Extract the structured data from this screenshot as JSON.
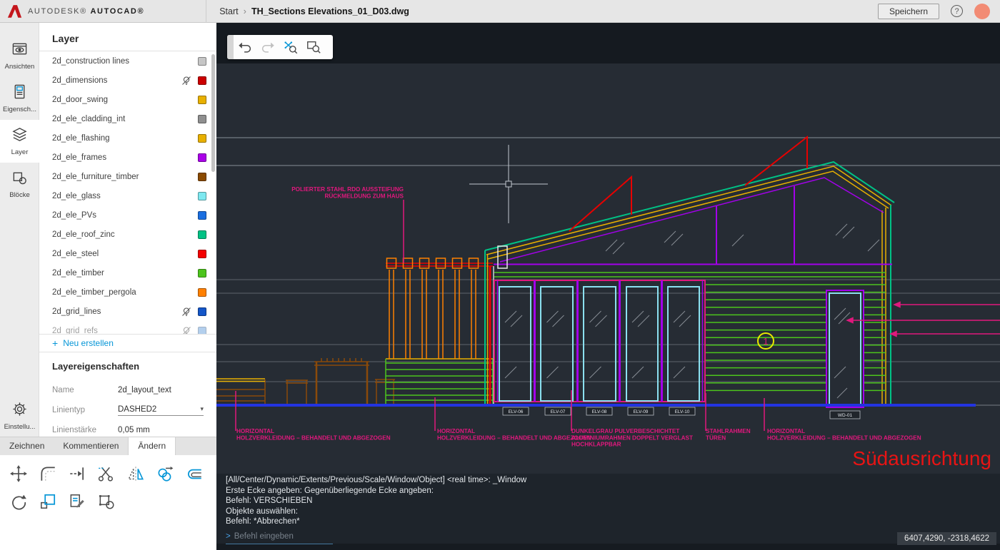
{
  "topbar": {
    "brand_primary": "AUTODESK®",
    "brand_secondary": "AUTOCAD®",
    "breadcrumb_home": "Start",
    "breadcrumb_separator": "›",
    "file_name": "TH_Sections Elevations_01_D03.dwg",
    "save_label": "Speichern",
    "help_symbol": "?",
    "logo_color": "#c4161c",
    "avatar_color": "#f28b74"
  },
  "sidebar": {
    "items": [
      {
        "label": "Ansichten",
        "icon": "views-eye-icon",
        "active": false
      },
      {
        "label": "Eigensch...",
        "icon": "properties-icon",
        "active": false
      },
      {
        "label": "Layer",
        "icon": "layers-icon",
        "active": true
      },
      {
        "label": "Blöcke",
        "icon": "blocks-icon",
        "active": false
      }
    ],
    "settings": {
      "label": "Einstellu...",
      "icon": "gear-icon"
    }
  },
  "layer_panel": {
    "title": "Layer",
    "new_label": "Neu erstellen",
    "accent_blue": "#0696d7",
    "layers": [
      {
        "name": "2d_construction lines",
        "color": "#c6c6c6",
        "hidden": false,
        "partial": false
      },
      {
        "name": "2d_dimensions",
        "color": "#cc0000",
        "hidden": true,
        "partial": false
      },
      {
        "name": "2d_door_swing",
        "color": "#e8b000",
        "hidden": false,
        "partial": false
      },
      {
        "name": "2d_ele_cladding_int",
        "color": "#8f8f8f",
        "hidden": false,
        "partial": false
      },
      {
        "name": "2d_ele_flashing",
        "color": "#e8b000",
        "hidden": false,
        "partial": false
      },
      {
        "name": "2d_ele_frames",
        "color": "#aa00e8",
        "hidden": false,
        "partial": false
      },
      {
        "name": "2d_ele_furniture_timber",
        "color": "#8a4a00",
        "hidden": false,
        "partial": false
      },
      {
        "name": "2d_ele_glass",
        "color": "#7de8f0",
        "hidden": false,
        "partial": false
      },
      {
        "name": "2d_ele_PVs",
        "color": "#1a6ee0",
        "hidden": false,
        "partial": false
      },
      {
        "name": "2d_ele_roof_zinc",
        "color": "#00c285",
        "hidden": false,
        "partial": false
      },
      {
        "name": "2d_ele_steel",
        "color": "#f40000",
        "hidden": false,
        "partial": false
      },
      {
        "name": "2d_ele_timber",
        "color": "#4cc41c",
        "hidden": false,
        "partial": false
      },
      {
        "name": "2d_ele_timber_pergola",
        "color": "#ff8000",
        "hidden": false,
        "partial": false
      },
      {
        "name": "2d_grid_lines",
        "color": "#1456c8",
        "hidden": true,
        "partial": false
      },
      {
        "name": "2d_grid_refs",
        "color": "#6aa0dc",
        "hidden": true,
        "partial": true
      }
    ]
  },
  "properties": {
    "title": "Layereigenschaften",
    "rows": [
      {
        "label": "Name",
        "value": "2d_layout_text",
        "type": "text"
      },
      {
        "label": "Linientyp",
        "value": "DASHED2",
        "type": "select"
      },
      {
        "label": "Linienstärke",
        "value": "0,05 mm",
        "type": "text"
      }
    ]
  },
  "tabs": {
    "items": [
      "Zeichnen",
      "Kommentieren",
      "Ändern"
    ],
    "active": "Ändern"
  },
  "tools": {
    "icons": [
      "move-icon",
      "fillet-icon",
      "extend-icon",
      "trim-icon",
      "mirror-icon",
      "copy-icon",
      "offset-icon",
      "rotate-icon",
      "scale-icon",
      "match-properties-icon",
      "explode-icon"
    ]
  },
  "canvas_toolbar": {
    "icons": [
      "undo-icon",
      "redo-icon",
      "zoom-extents-icon",
      "zoom-window-icon"
    ]
  },
  "command_panel": {
    "history": [
      "[All/Center/Dynamic/Extents/Previous/Scale/Window/Object] <real time>: _Window",
      "Erste Ecke angeben: Gegenüberliegende Ecke angeben:",
      "Befehl: VERSCHIEBEN",
      "Objekte auswählen:",
      "Befehl: *Abbrechen*"
    ],
    "prompt_symbol": ">",
    "prompt_placeholder": "Befehl eingeben"
  },
  "status": {
    "coordinates": "6407,4290, -2318,4622"
  },
  "drawing": {
    "view_title": "Südausrichtung",
    "view_title_color": "#e81414",
    "annotation_color": "#e0187d",
    "annotations": [
      {
        "lines": [
          "POLIERTER STAHL RDO AUSSTEIFUNG",
          "RÜCKMELDUNG ZUM HAUS"
        ]
      },
      {
        "lines": [
          "HORIZONTAL",
          "HOLZVERKLEIDUNG – BEHANDELT UND ABGEZOGEN"
        ]
      },
      {
        "lines": [
          "HORIZONTAL",
          "HOLZVERKLEIDUNG – BEHANDELT UND ABGEZOGEN"
        ]
      },
      {
        "lines": [
          "DUNKELGRAU PULVERBESCHICHTET",
          "ALUMINIUMRAHMEN DOPPELT VERGLAST",
          "HOCHKLAPPBAR"
        ]
      },
      {
        "lines": [
          "STAHLRAHMEN",
          "TÜREN"
        ]
      },
      {
        "lines": [
          "HORIZONTAL",
          "HOLZVERKLEIDUNG – BEHANDELT UND ABGEZOGEN"
        ]
      }
    ],
    "door_tags": [
      "ELV-06",
      "ELV-07",
      "ELV-08",
      "ELV-09",
      "ELV-10"
    ],
    "window_tag": "WD-01",
    "grid_bubble": "1"
  }
}
